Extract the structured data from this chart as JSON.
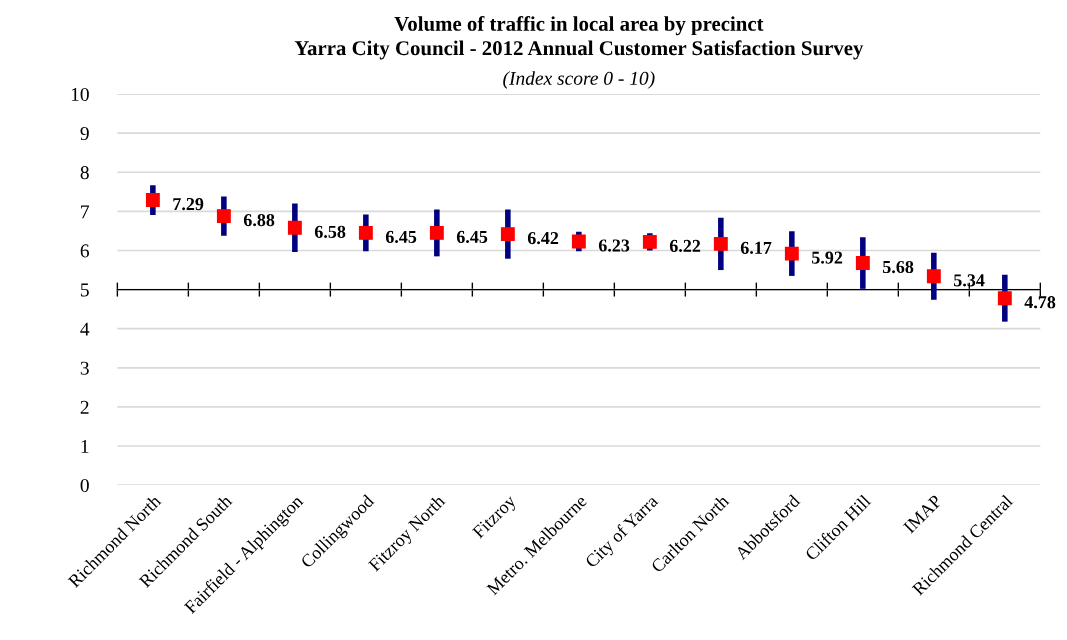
{
  "chart_data": {
    "type": "scatter",
    "title": "Volume of traffic in local area by precinct\nYarra City Council - 2012 Annual Customer Satisfaction Survey",
    "subtitle": "(Index score 0 - 10)",
    "categories": [
      "Richmond North",
      "Richmond South",
      "Fairfield - Alphington",
      "Collingwood",
      "Fitzroy North",
      "Fitzroy",
      "Metro. Melbourne",
      "City of Yarra",
      "Carlton North",
      "Abbotsford",
      "Clifton Hill",
      "IMAP",
      "Richmond Central"
    ],
    "series": [
      {
        "color": "#ff0000",
        "values": [
          7.29,
          6.88,
          6.58,
          6.45,
          6.45,
          6.42,
          6.23,
          6.22,
          6.17,
          5.92,
          5.68,
          5.34,
          4.78
        ],
        "errors": [
          0.38,
          0.5,
          0.62,
          0.47,
          0.6,
          0.63,
          0.25,
          0.22,
          0.67,
          0.57,
          0.66,
          0.6,
          0.6
        ]
      }
    ],
    "ylim": [
      0,
      10
    ],
    "yticks": [
      0,
      1,
      2,
      3,
      4,
      5,
      6,
      7,
      8,
      9,
      10
    ],
    "ref_lines": [
      {
        "axis": "y",
        "value": 5,
        "color": "#000000"
      }
    ],
    "grid": "y",
    "marker": "square",
    "data_labels": true
  }
}
